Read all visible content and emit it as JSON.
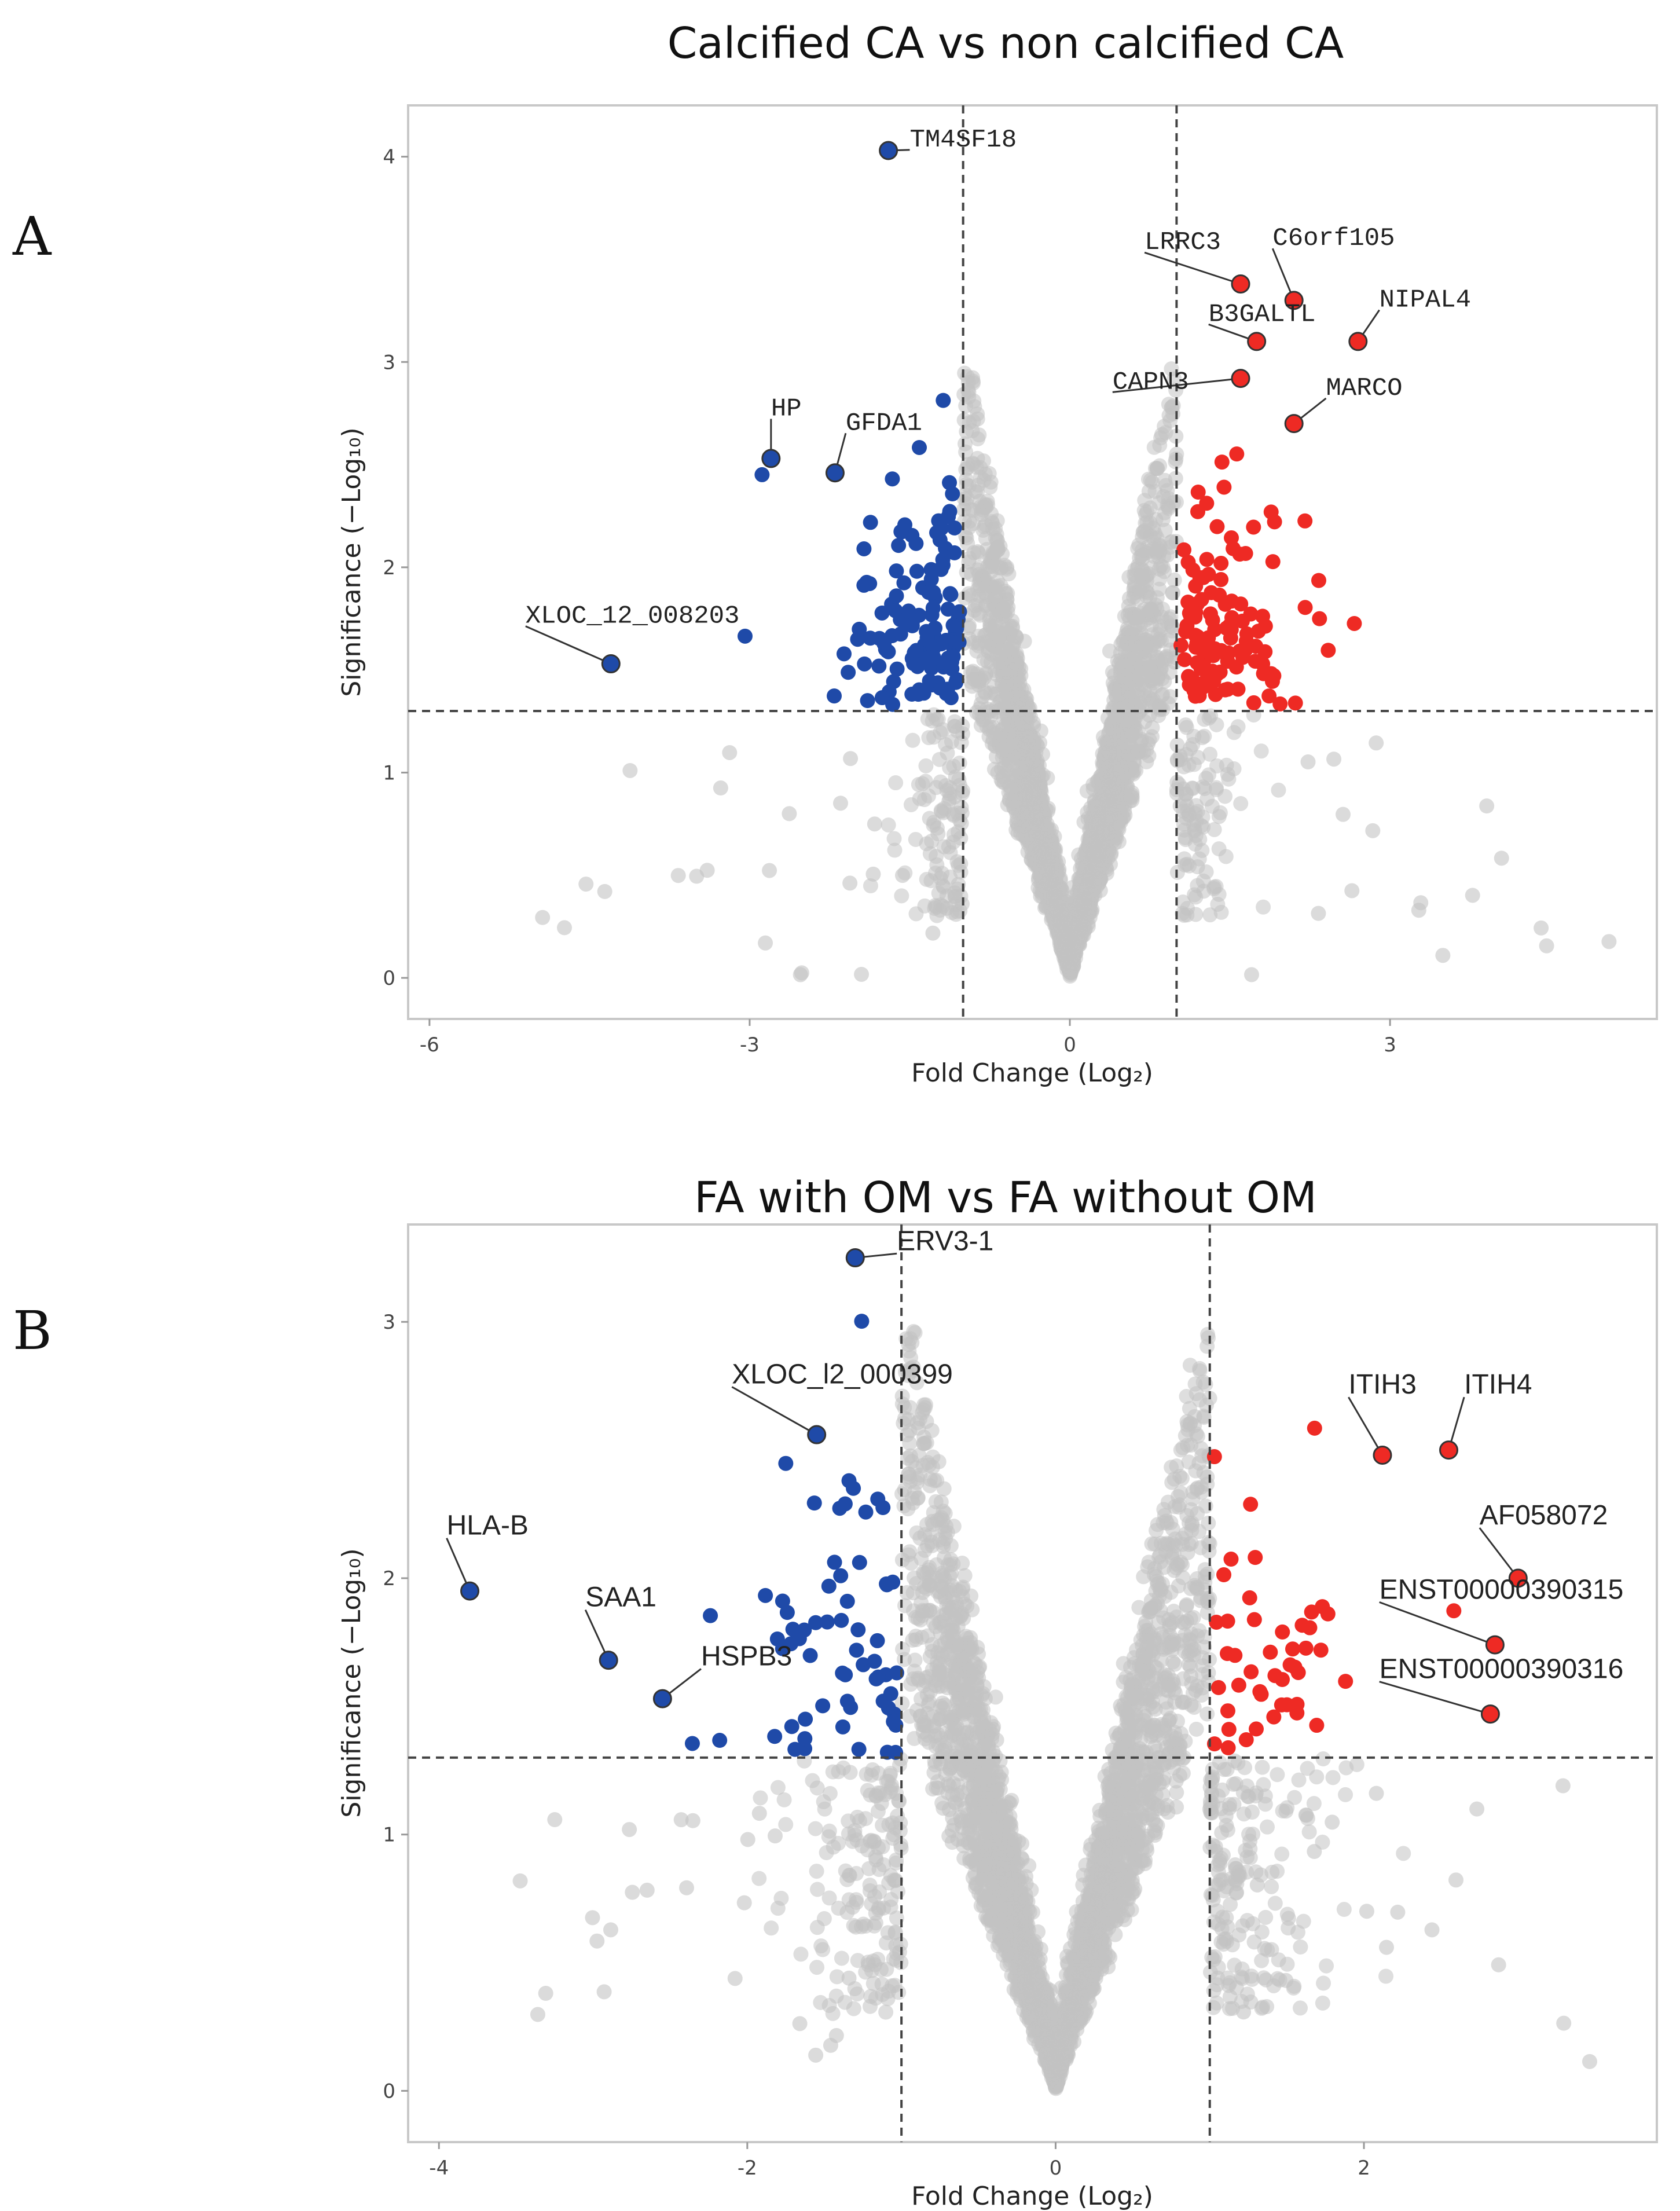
{
  "figure": {
    "panel_letters": [
      "A",
      "B"
    ]
  },
  "chart_data": [
    {
      "type": "scatter",
      "subtype": "volcano",
      "title": "Calcified CA vs non calcified CA",
      "xlabel": "Fold Change (Log₂)",
      "ylabel": "Significance (−Log₁₀)",
      "xlim": [
        -6.2,
        5.5
      ],
      "ylim": [
        -0.2,
        4.25
      ],
      "xticks": [
        -6,
        -3,
        0,
        3
      ],
      "yticks": [
        0,
        1,
        2,
        3,
        4
      ],
      "fc_threshold": 1,
      "sig_threshold": 1.3,
      "colors": {
        "up": "#ee2a24",
        "down": "#1f4aa8",
        "ns": "#c3c3c3"
      },
      "label_font": "mono",
      "labeled_genes": [
        {
          "name": "TM4SF18",
          "x": -1.7,
          "y": 4.03,
          "dir": "down",
          "lx": -1.5,
          "ly": 4.05
        },
        {
          "name": "LRRC3",
          "x": 1.6,
          "y": 3.38,
          "dir": "up",
          "lx": 0.7,
          "ly": 3.55
        },
        {
          "name": "C6orf105",
          "x": 2.1,
          "y": 3.3,
          "dir": "up",
          "lx": 1.9,
          "ly": 3.57
        },
        {
          "name": "NIPAL4",
          "x": 2.7,
          "y": 3.1,
          "dir": "up",
          "lx": 2.9,
          "ly": 3.27
        },
        {
          "name": "B3GALTL",
          "x": 1.75,
          "y": 3.1,
          "dir": "up",
          "lx": 1.3,
          "ly": 3.2
        },
        {
          "name": "CAPN3",
          "x": 1.6,
          "y": 2.92,
          "dir": "up",
          "lx": 0.4,
          "ly": 2.87
        },
        {
          "name": "MARCO",
          "x": 2.1,
          "y": 2.7,
          "dir": "up",
          "lx": 2.4,
          "ly": 2.84
        },
        {
          "name": "HP",
          "x": -2.8,
          "y": 2.53,
          "dir": "down",
          "lx": -2.8,
          "ly": 2.74
        },
        {
          "name": "GFDA1",
          "x": -2.2,
          "y": 2.46,
          "dir": "down",
          "lx": -2.1,
          "ly": 2.67
        },
        {
          "name": "XLOC_12_008203",
          "x": -4.3,
          "y": 1.53,
          "dir": "down",
          "lx": -5.1,
          "ly": 1.73
        }
      ]
    },
    {
      "type": "scatter",
      "subtype": "volcano",
      "title": "FA with OM vs FA without OM",
      "xlabel": "Fold Change (Log₂)",
      "ylabel": "Significance (−Log₁₀)",
      "xlim": [
        -4.2,
        3.9
      ],
      "ylim": [
        -0.2,
        3.38
      ],
      "xticks": [
        -4,
        -2,
        0,
        2
      ],
      "yticks": [
        0,
        1,
        2,
        3
      ],
      "fc_threshold": 1,
      "sig_threshold": 1.3,
      "colors": {
        "up": "#ee2a24",
        "down": "#1f4aa8",
        "ns": "#c3c3c3"
      },
      "label_font": "sans",
      "labeled_genes": [
        {
          "name": "ERV3-1",
          "x": -1.3,
          "y": 3.25,
          "dir": "down",
          "lx": -1.03,
          "ly": 3.28
        },
        {
          "name": "XLOC_l2_000399",
          "x": -1.55,
          "y": 2.56,
          "dir": "down",
          "lx": -2.1,
          "ly": 2.76
        },
        {
          "name": "ITIH3",
          "x": 2.12,
          "y": 2.48,
          "dir": "up",
          "lx": 1.9,
          "ly": 2.72
        },
        {
          "name": "ITIH4",
          "x": 2.55,
          "y": 2.5,
          "dir": "up",
          "lx": 2.65,
          "ly": 2.72
        },
        {
          "name": "AF058072",
          "x": 3.0,
          "y": 2.0,
          "dir": "up",
          "lx": 2.75,
          "ly": 2.21
        },
        {
          "name": "ENST00000390315",
          "x": 2.85,
          "y": 1.74,
          "dir": "up",
          "lx": 2.1,
          "ly": 1.92
        },
        {
          "name": "ENST00000390316",
          "x": 2.82,
          "y": 1.47,
          "dir": "up",
          "lx": 2.1,
          "ly": 1.61
        },
        {
          "name": "HLA-B",
          "x": -3.8,
          "y": 1.95,
          "dir": "down",
          "lx": -3.95,
          "ly": 2.17
        },
        {
          "name": "SAA1",
          "x": -2.9,
          "y": 1.68,
          "dir": "down",
          "lx": -3.05,
          "ly": 1.89
        },
        {
          "name": "HSPB3",
          "x": -2.55,
          "y": 1.53,
          "dir": "down",
          "lx": -2.3,
          "ly": 1.66
        }
      ]
    }
  ]
}
